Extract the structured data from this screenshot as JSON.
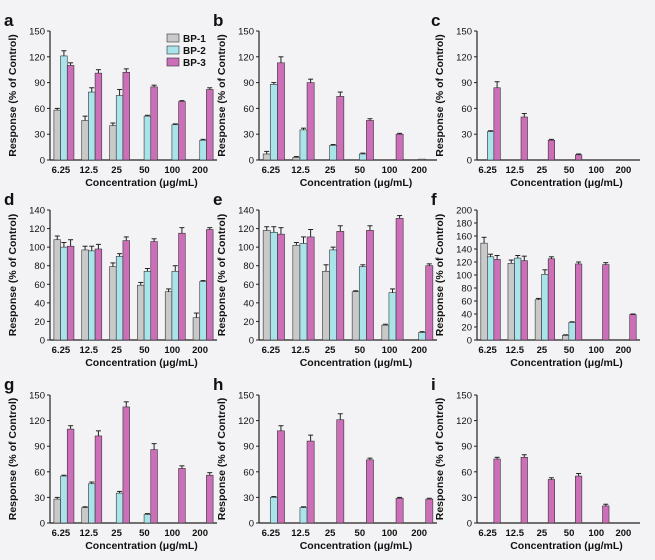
{
  "colors": {
    "BP-1": "#c9c9c9",
    "BP-2": "#a8e4ea",
    "BP-3": "#cd6fb8",
    "axis": "#222222",
    "background": "#f3f3f5"
  },
  "chart_data": [
    {
      "panel": "a",
      "type": "bar",
      "categories": [
        "6.25",
        "12.5",
        "25",
        "50",
        "100",
        "200"
      ],
      "xlabel": "Concentration (μg/mL)",
      "ylabel": "Response (% of Control)",
      "ylim": [
        0,
        150
      ],
      "yticks": [
        0,
        30,
        60,
        90,
        120,
        150
      ],
      "legend": {
        "entries": [
          "BP-1",
          "BP-2",
          "BP-3"
        ],
        "position": "top-right"
      },
      "series": [
        {
          "name": "BP-1",
          "values": [
            58,
            46,
            40,
            null,
            null,
            null
          ],
          "errors": [
            2,
            5,
            3,
            0,
            0,
            0
          ]
        },
        {
          "name": "BP-2",
          "values": [
            121,
            79,
            75,
            51,
            41,
            23
          ],
          "errors": [
            6,
            5,
            7,
            1,
            1,
            1
          ]
        },
        {
          "name": "BP-3",
          "values": [
            110,
            101,
            102,
            85,
            68,
            82
          ],
          "errors": [
            3,
            4,
            4,
            2,
            1,
            2
          ]
        }
      ]
    },
    {
      "panel": "b",
      "type": "bar",
      "categories": [
        "6.25",
        "12.5",
        "25",
        "50",
        "100",
        "200"
      ],
      "xlabel": "Concentration (μg/mL)",
      "ylabel": "Response (% of Control)",
      "ylim": [
        0,
        150
      ],
      "yticks": [
        0,
        30,
        60,
        90,
        120,
        150
      ],
      "series": [
        {
          "name": "BP-1",
          "values": [
            7,
            3,
            null,
            null,
            null,
            null
          ],
          "errors": [
            3,
            1,
            0,
            0,
            0,
            0
          ]
        },
        {
          "name": "BP-2",
          "values": [
            88,
            35,
            17,
            7,
            null,
            1
          ],
          "errors": [
            2,
            2,
            1,
            1,
            0,
            0
          ]
        },
        {
          "name": "BP-3",
          "values": [
            113,
            90,
            74,
            46,
            30,
            null
          ],
          "errors": [
            7,
            4,
            5,
            2,
            1,
            0
          ]
        }
      ]
    },
    {
      "panel": "c",
      "type": "bar",
      "categories": [
        "6.25",
        "12.5",
        "25",
        "50",
        "100",
        "200"
      ],
      "xlabel": "Concentration (μg/mL)",
      "ylabel": "Response (% of Control)",
      "ylim": [
        0,
        150
      ],
      "yticks": [
        0,
        30,
        60,
        90,
        120,
        150
      ],
      "series": [
        {
          "name": "BP-1",
          "values": [
            null,
            null,
            null,
            null,
            null,
            null
          ],
          "errors": [
            0,
            0,
            0,
            0,
            0,
            0
          ]
        },
        {
          "name": "BP-2",
          "values": [
            33,
            null,
            null,
            null,
            null,
            null
          ],
          "errors": [
            1,
            0,
            0,
            0,
            0,
            0
          ]
        },
        {
          "name": "BP-3",
          "values": [
            84,
            50,
            23,
            6,
            null,
            null
          ],
          "errors": [
            7,
            4,
            1,
            1,
            0,
            0
          ]
        }
      ]
    },
    {
      "panel": "d",
      "type": "bar",
      "categories": [
        "6.25",
        "12.5",
        "25",
        "50",
        "100",
        "200"
      ],
      "xlabel": "Concentration (μg/mL)",
      "ylabel": "Response (% of Control)",
      "ylim": [
        0,
        140
      ],
      "yticks": [
        0,
        20,
        40,
        60,
        80,
        100,
        120,
        140
      ],
      "series": [
        {
          "name": "BP-1",
          "values": [
            108,
            97,
            79,
            59,
            52,
            24
          ],
          "errors": [
            4,
            4,
            4,
            3,
            3,
            5
          ]
        },
        {
          "name": "BP-2",
          "values": [
            100,
            96,
            90,
            74,
            74,
            63
          ],
          "errors": [
            5,
            5,
            3,
            3,
            6,
            1
          ]
        },
        {
          "name": "BP-3",
          "values": [
            101,
            98,
            107,
            106,
            115,
            119
          ],
          "errors": [
            7,
            5,
            4,
            3,
            6,
            2
          ]
        }
      ]
    },
    {
      "panel": "e",
      "type": "bar",
      "categories": [
        "6.25",
        "12.5",
        "25",
        "50",
        "100",
        "200"
      ],
      "xlabel": "Concentration (μg/mL)",
      "ylabel": "Response (% of Control)",
      "ylim": [
        0,
        140
      ],
      "yticks": [
        0,
        20,
        40,
        60,
        80,
        100,
        120,
        140
      ],
      "series": [
        {
          "name": "BP-1",
          "values": [
            118,
            102,
            74,
            52,
            16,
            null
          ],
          "errors": [
            4,
            3,
            7,
            1,
            1,
            0
          ]
        },
        {
          "name": "BP-2",
          "values": [
            116,
            104,
            97,
            79,
            51,
            8
          ],
          "errors": [
            6,
            7,
            3,
            2,
            4,
            1
          ]
        },
        {
          "name": "BP-3",
          "values": [
            114,
            111,
            117,
            118,
            131,
            80
          ],
          "errors": [
            7,
            8,
            6,
            5,
            3,
            2
          ]
        }
      ]
    },
    {
      "panel": "f",
      "type": "bar",
      "categories": [
        "6.25",
        "12.5",
        "25",
        "50",
        "100",
        "200"
      ],
      "xlabel": "Concentration (μg/mL)",
      "ylabel": "Response (% of Control)",
      "ylim": [
        0,
        200
      ],
      "yticks": [
        0,
        20,
        40,
        60,
        80,
        100,
        120,
        140,
        160,
        180,
        200
      ],
      "series": [
        {
          "name": "BP-1",
          "values": [
            149,
            118,
            62,
            7,
            null,
            null
          ],
          "errors": [
            9,
            5,
            2,
            1,
            0,
            0
          ]
        },
        {
          "name": "BP-2",
          "values": [
            128,
            126,
            101,
            27,
            null,
            null
          ],
          "errors": [
            4,
            4,
            7,
            1,
            0,
            0
          ]
        },
        {
          "name": "BP-3",
          "values": [
            124,
            122,
            125,
            117,
            116,
            39
          ],
          "errors": [
            6,
            7,
            3,
            3,
            3,
            1
          ]
        }
      ]
    },
    {
      "panel": "g",
      "type": "bar",
      "categories": [
        "6.25",
        "12.5",
        "25",
        "50",
        "100",
        "200"
      ],
      "xlabel": "Concentration (μg/mL)",
      "ylabel": "Response (% of Control)",
      "ylim": [
        0,
        150
      ],
      "yticks": [
        0,
        30,
        60,
        90,
        120,
        150
      ],
      "series": [
        {
          "name": "BP-1",
          "values": [
            28,
            18,
            null,
            null,
            null,
            null
          ],
          "errors": [
            2,
            1,
            0,
            0,
            0,
            0
          ]
        },
        {
          "name": "BP-2",
          "values": [
            55,
            46,
            35,
            10,
            null,
            null
          ],
          "errors": [
            1,
            2,
            2,
            1,
            0,
            0
          ]
        },
        {
          "name": "BP-3",
          "values": [
            110,
            102,
            136,
            86,
            64,
            56
          ],
          "errors": [
            4,
            6,
            6,
            7,
            3,
            3
          ]
        }
      ]
    },
    {
      "panel": "h",
      "type": "bar",
      "categories": [
        "6.25",
        "12.5",
        "25",
        "50",
        "100",
        "200"
      ],
      "xlabel": "Concentration (μg/mL)",
      "ylabel": "Response (% of Control)",
      "ylim": [
        0,
        150
      ],
      "yticks": [
        0,
        30,
        60,
        90,
        120,
        150
      ],
      "series": [
        {
          "name": "BP-1",
          "values": [
            null,
            null,
            null,
            null,
            null,
            null
          ],
          "errors": [
            0,
            0,
            0,
            0,
            0,
            0
          ]
        },
        {
          "name": "BP-2",
          "values": [
            30,
            18,
            null,
            null,
            null,
            null
          ],
          "errors": [
            1,
            1,
            0,
            0,
            0,
            0
          ]
        },
        {
          "name": "BP-3",
          "values": [
            108,
            96,
            121,
            74,
            29,
            28
          ],
          "errors": [
            6,
            7,
            7,
            2,
            1,
            1
          ]
        }
      ]
    },
    {
      "panel": "i",
      "type": "bar",
      "categories": [
        "6.25",
        "12.5",
        "25",
        "50",
        "100",
        "200"
      ],
      "xlabel": "Concentration (μg/mL)",
      "ylabel": "Response (% of Control)",
      "ylim": [
        0,
        150
      ],
      "yticks": [
        0,
        30,
        60,
        90,
        120,
        150
      ],
      "series": [
        {
          "name": "BP-1",
          "values": [
            null,
            null,
            null,
            null,
            null,
            null
          ],
          "errors": [
            0,
            0,
            0,
            0,
            0,
            0
          ]
        },
        {
          "name": "BP-2",
          "values": [
            null,
            null,
            null,
            null,
            null,
            null
          ],
          "errors": [
            0,
            0,
            0,
            0,
            0,
            0
          ]
        },
        {
          "name": "BP-3",
          "values": [
            75,
            77,
            51,
            55,
            20,
            null
          ],
          "errors": [
            2,
            3,
            2,
            3,
            2,
            0
          ]
        }
      ]
    }
  ]
}
